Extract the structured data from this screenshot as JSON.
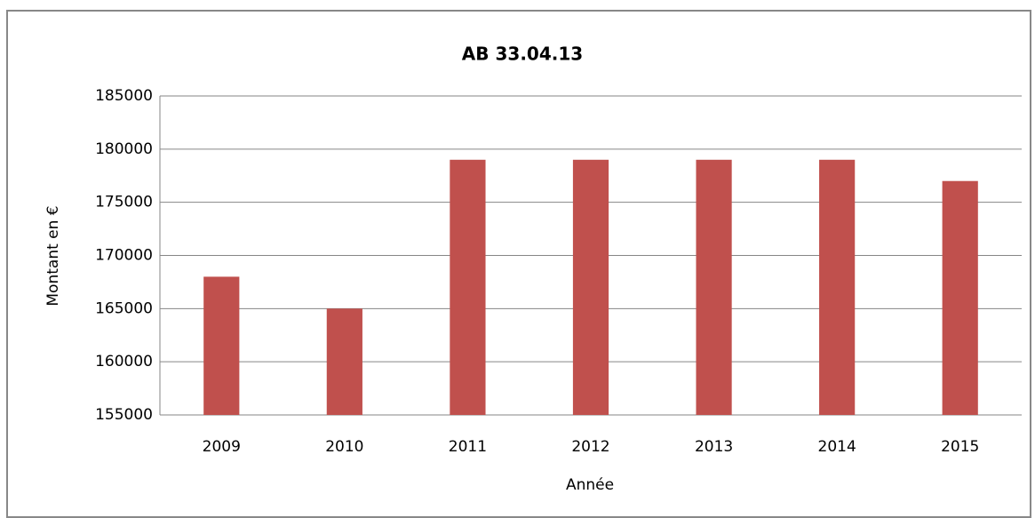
{
  "chart_data": {
    "type": "bar",
    "title": "AB 33.04.13",
    "x_label": "Année",
    "y_label": "Montant en €",
    "categories": [
      "2009",
      "2010",
      "2011",
      "2012",
      "2013",
      "2014",
      "2015"
    ],
    "values": [
      168000,
      165000,
      179000,
      179000,
      179000,
      179000,
      177000
    ],
    "color": "#c0504d",
    "ylim": [
      155000,
      185000
    ],
    "yticks": [
      155000,
      160000,
      165000,
      170000,
      175000,
      180000,
      185000
    ],
    "grid": true
  }
}
